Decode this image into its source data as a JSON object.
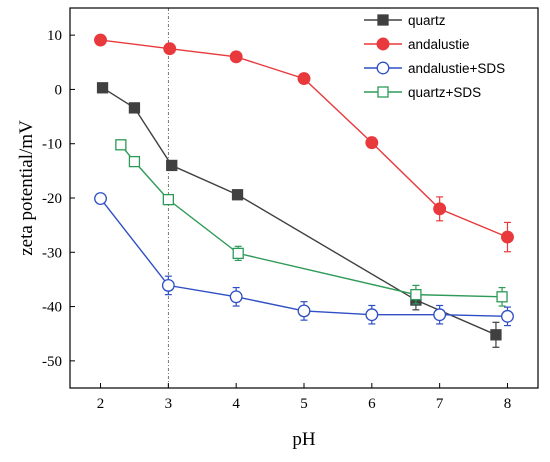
{
  "chart_data": {
    "type": "line",
    "xlabel": "pH",
    "ylabel": "zeta potential/mV",
    "xlim": [
      1.55,
      8.45
    ],
    "ylim": [
      -55,
      15
    ],
    "xticks": [
      2,
      3,
      4,
      5,
      6,
      7,
      8
    ],
    "yticks": [
      10,
      0,
      -10,
      -20,
      -30,
      -40,
      -50
    ],
    "xtick_labels": [
      "2",
      "3",
      "4",
      "5",
      "6",
      "7",
      "8"
    ],
    "ytick_labels": [
      "10",
      "0",
      "-10",
      "-20",
      "-30",
      "-40",
      "-50"
    ],
    "reference_line_x": 3,
    "legend_position": "top-right",
    "grid": false,
    "series": [
      {
        "name": "quartz",
        "color": "#404040",
        "marker": "square-filled",
        "points": [
          {
            "x": 2.03,
            "y": 0.3,
            "err": 0
          },
          {
            "x": 2.5,
            "y": -3.4,
            "err": 0
          },
          {
            "x": 3.05,
            "y": -14.0,
            "err": 0
          },
          {
            "x": 4.02,
            "y": -19.4,
            "err": 0.8
          },
          {
            "x": 6.65,
            "y": -38.8,
            "err": 1.8
          },
          {
            "x": 7.83,
            "y": -45.2,
            "err": 2.3
          }
        ]
      },
      {
        "name": "andalustie",
        "color": "#e8393c",
        "marker": "circle-filled",
        "points": [
          {
            "x": 2.0,
            "y": 9.1,
            "err": 0.9
          },
          {
            "x": 3.02,
            "y": 7.5,
            "err": 0
          },
          {
            "x": 4.0,
            "y": 6.0,
            "err": 0
          },
          {
            "x": 5.0,
            "y": 2.0,
            "err": 0
          },
          {
            "x": 6.0,
            "y": -9.8,
            "err": 0.9
          },
          {
            "x": 7.0,
            "y": -22.0,
            "err": 2.2
          },
          {
            "x": 8.0,
            "y": -27.2,
            "err": 2.7
          }
        ]
      },
      {
        "name": "andalustie+SDS",
        "color": "#2e4fc4",
        "marker": "circle-open",
        "points": [
          {
            "x": 2.0,
            "y": -20.1,
            "err": 0.9
          },
          {
            "x": 3.0,
            "y": -36.1,
            "err": 1.7
          },
          {
            "x": 4.0,
            "y": -38.2,
            "err": 1.7
          },
          {
            "x": 5.0,
            "y": -40.8,
            "err": 1.7
          },
          {
            "x": 6.0,
            "y": -41.5,
            "err": 1.7
          },
          {
            "x": 7.0,
            "y": -41.5,
            "err": 1.7
          },
          {
            "x": 8.0,
            "y": -41.8,
            "err": 1.7
          }
        ]
      },
      {
        "name": "quartz+SDS",
        "color": "#2e9a58",
        "marker": "square-open",
        "points": [
          {
            "x": 2.3,
            "y": -10.2,
            "err": 0.6
          },
          {
            "x": 2.5,
            "y": -13.3,
            "err": 0.6
          },
          {
            "x": 3.0,
            "y": -20.3,
            "err": 0.9
          },
          {
            "x": 4.03,
            "y": -30.2,
            "err": 1.3
          },
          {
            "x": 6.65,
            "y": -37.8,
            "err": 1.7
          },
          {
            "x": 7.92,
            "y": -38.2,
            "err": 1.7
          }
        ]
      }
    ]
  }
}
